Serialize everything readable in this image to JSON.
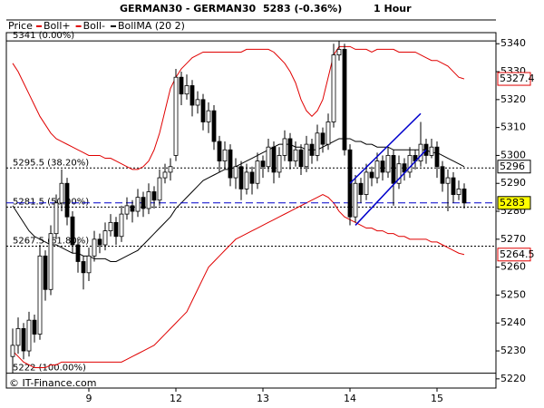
{
  "chart_data": {
    "type": "candlestick",
    "title": "GERMAN30 - GERMAN30",
    "price_change": "5283 (-0.36%)",
    "timeframe": "1 Hour",
    "price_label": "Price",
    "watermark": "© IT-Finance.com",
    "last_price": 5283,
    "categories": [
      null,
      null,
      null,
      null,
      null,
      null,
      null,
      null,
      null,
      null,
      null,
      null,
      null,
      null,
      "9",
      null,
      null,
      null,
      null,
      null,
      null,
      null,
      null,
      null,
      null,
      null,
      null,
      null,
      null,
      null,
      "12",
      null,
      null,
      null,
      null,
      null,
      null,
      null,
      null,
      null,
      null,
      null,
      null,
      null,
      null,
      null,
      "13",
      null,
      null,
      null,
      null,
      null,
      null,
      null,
      null,
      null,
      null,
      null,
      null,
      null,
      null,
      null,
      "14",
      null,
      null,
      null,
      null,
      null,
      null,
      null,
      null,
      null,
      null,
      null,
      null,
      null,
      null,
      null,
      "15",
      null,
      null,
      null,
      null,
      null
    ],
    "open": [
      5228,
      5232,
      5238,
      5230,
      5241,
      5236,
      5264,
      5252,
      5272,
      5283,
      5290,
      5278,
      5268,
      5262,
      5258,
      5264,
      5270,
      5268,
      5273,
      5276,
      5271,
      5279,
      5282,
      5280,
      5285,
      5281,
      5287,
      5284,
      5292,
      5294,
      5300,
      5328,
      5322,
      5325,
      5318,
      5320,
      5312,
      5316,
      5305,
      5298,
      5302,
      5292,
      5296,
      5288,
      5294,
      5290,
      5298,
      5296,
      5303,
      5294,
      5300,
      5306,
      5298,
      5302,
      5296,
      5304,
      5300,
      5308,
      5304,
      5312,
      5336,
      5338,
      5302,
      5278,
      5290,
      5286,
      5294,
      5292,
      5298,
      5294,
      5300,
      5290,
      5297,
      5294,
      5300,
      5298,
      5304,
      5300,
      5303,
      5296,
      5290,
      5292,
      5286,
      5288
    ],
    "high": [
      5238,
      5242,
      5240,
      5244,
      5243,
      5268,
      5266,
      5275,
      5286,
      5295,
      5292,
      5280,
      5270,
      5264,
      5267,
      5273,
      5272,
      5276,
      5279,
      5278,
      5282,
      5285,
      5284,
      5288,
      5287,
      5290,
      5289,
      5295,
      5297,
      5299,
      5331,
      5330,
      5329,
      5327,
      5323,
      5322,
      5319,
      5318,
      5307,
      5305,
      5304,
      5299,
      5298,
      5297,
      5296,
      5301,
      5300,
      5306,
      5305,
      5303,
      5309,
      5308,
      5305,
      5304,
      5307,
      5306,
      5311,
      5310,
      5315,
      5340,
      5341,
      5340,
      5304,
      5293,
      5292,
      5297,
      5296,
      5301,
      5300,
      5303,
      5302,
      5300,
      5299,
      5303,
      5302,
      5312,
      5306,
      5306,
      5305,
      5298,
      5295,
      5294,
      5291,
      5290
    ],
    "low": [
      5222,
      5229,
      5227,
      5228,
      5233,
      5234,
      5248,
      5250,
      5270,
      5280,
      5275,
      5265,
      5258,
      5252,
      5255,
      5262,
      5265,
      5266,
      5271,
      5268,
      5269,
      5277,
      5276,
      5278,
      5278,
      5279,
      5281,
      5282,
      5290,
      5291,
      5298,
      5318,
      5320,
      5314,
      5315,
      5309,
      5308,
      5302,
      5294,
      5295,
      5289,
      5288,
      5284,
      5286,
      5286,
      5288,
      5292,
      5294,
      5290,
      5292,
      5298,
      5295,
      5296,
      5293,
      5294,
      5297,
      5298,
      5301,
      5302,
      5310,
      5334,
      5300,
      5275,
      5276,
      5283,
      5284,
      5289,
      5290,
      5291,
      5292,
      5282,
      5288,
      5291,
      5292,
      5295,
      5296,
      5297,
      5299,
      5292,
      5287,
      5280,
      5283,
      5284,
      5281
    ],
    "close": [
      5232,
      5238,
      5230,
      5241,
      5236,
      5264,
      5252,
      5272,
      5283,
      5290,
      5278,
      5268,
      5262,
      5258,
      5264,
      5270,
      5268,
      5273,
      5276,
      5271,
      5279,
      5282,
      5280,
      5285,
      5281,
      5287,
      5284,
      5292,
      5294,
      5296,
      5328,
      5322,
      5325,
      5318,
      5320,
      5312,
      5316,
      5305,
      5298,
      5302,
      5292,
      5296,
      5288,
      5294,
      5290,
      5298,
      5296,
      5303,
      5294,
      5300,
      5306,
      5298,
      5302,
      5296,
      5304,
      5300,
      5308,
      5304,
      5312,
      5336,
      5338,
      5302,
      5278,
      5290,
      5286,
      5294,
      5292,
      5298,
      5294,
      5300,
      5290,
      5297,
      5294,
      5300,
      5298,
      5304,
      5300,
      5303,
      5296,
      5290,
      5292,
      5286,
      5288,
      5283
    ],
    "series": [
      {
        "name": "Boll+",
        "color": "#e00000",
        "values": [
          5333,
          5330,
          5326,
          5322,
          5318,
          5314,
          5311,
          5308,
          5306,
          5305,
          5304,
          5303,
          5302,
          5301,
          5300,
          5300,
          5300,
          5299,
          5299,
          5298,
          5297,
          5296,
          5295,
          5295,
          5296,
          5298,
          5302,
          5308,
          5316,
          5324,
          5328,
          5331,
          5333,
          5335,
          5336,
          5337,
          5337,
          5337,
          5337,
          5337,
          5337,
          5337,
          5337,
          5338,
          5338,
          5338,
          5338,
          5338,
          5337,
          5335,
          5333,
          5330,
          5326,
          5320,
          5316,
          5314,
          5316,
          5320,
          5328,
          5336,
          5339,
          5339,
          5339,
          5338,
          5338,
          5338,
          5337,
          5338,
          5338,
          5338,
          5338,
          5337,
          5337,
          5337,
          5337,
          5336,
          5335,
          5334,
          5334,
          5333,
          5332,
          5330,
          5328,
          5327.4
        ]
      },
      {
        "name": "Boll-",
        "color": "#e00000",
        "values": [
          5230,
          5228,
          5226,
          5225,
          5224,
          5224,
          5224,
          5225,
          5225,
          5226,
          5226,
          5226,
          5226,
          5226,
          5226,
          5226,
          5226,
          5226,
          5226,
          5226,
          5226,
          5227,
          5228,
          5229,
          5230,
          5231,
          5232,
          5234,
          5236,
          5238,
          5240,
          5242,
          5244,
          5248,
          5252,
          5256,
          5260,
          5262,
          5264,
          5266,
          5268,
          5270,
          5271,
          5272,
          5273,
          5274,
          5275,
          5276,
          5277,
          5278,
          5279,
          5280,
          5281,
          5282,
          5283,
          5284,
          5285,
          5286,
          5285,
          5283,
          5280,
          5278,
          5277,
          5276,
          5275,
          5274,
          5274,
          5273,
          5273,
          5272,
          5272,
          5271,
          5271,
          5270,
          5270,
          5270,
          5270,
          5269,
          5269,
          5268,
          5267,
          5266,
          5265,
          5264.5
        ]
      },
      {
        "name": "BollMA (20 2)",
        "color": "#000000",
        "values": [
          5282,
          5279,
          5276,
          5273,
          5271,
          5270,
          5269,
          5268,
          5268,
          5267,
          5266,
          5265,
          5265,
          5264,
          5264,
          5263,
          5263,
          5263,
          5262,
          5262,
          5263,
          5264,
          5265,
          5266,
          5268,
          5270,
          5272,
          5274,
          5276,
          5278,
          5281,
          5283,
          5285,
          5287,
          5289,
          5291,
          5292,
          5293,
          5294,
          5295,
          5295,
          5296,
          5297,
          5298,
          5299,
          5300,
          5301,
          5302,
          5303,
          5304,
          5304,
          5304,
          5303,
          5303,
          5302,
          5302,
          5302,
          5303,
          5304,
          5305,
          5306,
          5306,
          5306,
          5305,
          5305,
          5304,
          5304,
          5303,
          5303,
          5303,
          5302,
          5302,
          5302,
          5302,
          5302,
          5302,
          5302,
          5301,
          5301,
          5300,
          5299,
          5298,
          5297,
          5296
        ]
      }
    ],
    "fib_levels": [
      {
        "value": 5341,
        "label": "5341 (0.00%)"
      },
      {
        "value": 5295.5,
        "label": "5295.5 (38.20%)"
      },
      {
        "value": 5281.5,
        "label": "5281.5 (50.00%)"
      },
      {
        "value": 5267.5,
        "label": "5267.5 (61.80%)"
      },
      {
        "value": 5222,
        "label": "5222 (100.00%)"
      }
    ],
    "trendlines": [
      {
        "x": [
          62,
          75
        ],
        "y": [
          5290,
          5315
        ]
      },
      {
        "x": [
          63,
          76
        ],
        "y": [
          5275,
          5302
        ]
      }
    ],
    "ylim": [
      5218,
      5343
    ],
    "yticks": [
      5220,
      5230,
      5240,
      5250,
      5260,
      5270,
      5280,
      5290,
      5300,
      5310,
      5320,
      5330,
      5340
    ]
  }
}
